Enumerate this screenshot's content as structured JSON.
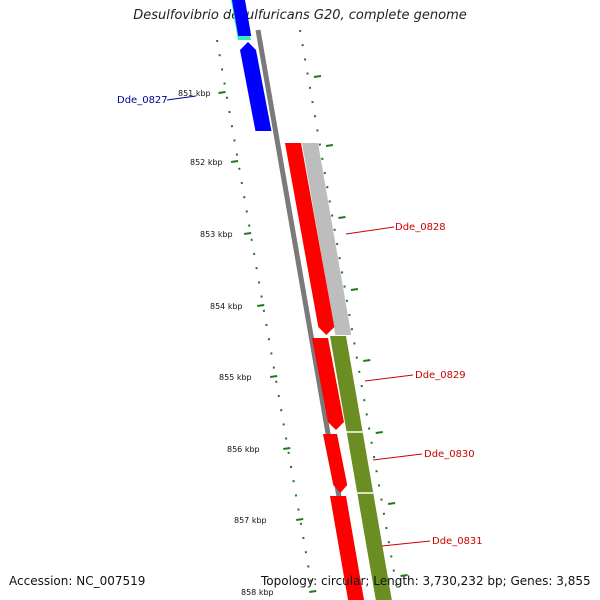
{
  "title": "Desulfovibrio desulfuricans G20, complete genome",
  "accession": "Accession: NC_007519",
  "topology": "Topology: circular; Length: 3,730,232 bp; Genes: 3,855",
  "colors": {
    "backbone": "#7a7a7a",
    "gene_blue": "#0000ff",
    "gene_red": "#ff0000",
    "gene_teal": "#33eebb",
    "gc_gray": "#bdbdbd",
    "gc_olive": "#6b8e23",
    "tick_green": "#1f7a1f",
    "label_blue": "#000099",
    "label_red": "#cc0000"
  },
  "ticks": [
    "851 kbp",
    "852 kbp",
    "853 kbp",
    "854 kbp",
    "855 kbp",
    "856 kbp",
    "857 kbp",
    "858 kbp"
  ],
  "genes": [
    {
      "label": "Dde_0827",
      "color": "blue"
    },
    {
      "label": "Dde_0828",
      "color": "red"
    },
    {
      "label": "Dde_0829",
      "color": "red"
    },
    {
      "label": "Dde_0830",
      "color": "red"
    },
    {
      "label": "Dde_0831",
      "color": "red"
    }
  ]
}
